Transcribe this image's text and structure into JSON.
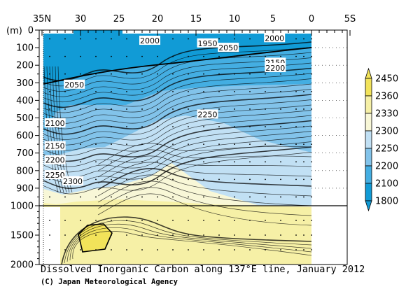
{
  "chart_data": {
    "type": "heatmap",
    "x_axis": {
      "tick_labels": [
        "35N",
        "30",
        "25",
        "20",
        "15",
        "10",
        "5",
        "0",
        "5S"
      ],
      "tick_values": [
        35,
        30,
        25,
        20,
        15,
        10,
        5,
        0,
        -5
      ],
      "range": [
        35,
        -5
      ],
      "unit": "°N"
    },
    "y_axis": {
      "unit_label": "(m)",
      "tick_labels": [
        "0",
        "100",
        "200",
        "300",
        "400",
        "500",
        "600",
        "700",
        "800",
        "900",
        "1000",
        "1500",
        "2000"
      ],
      "upper_segment_range": [
        0,
        1000
      ],
      "lower_segment_range": [
        1000,
        2000
      ],
      "inverted": true
    },
    "color_scale": {
      "levels": [
        "1800",
        "2100",
        "2200",
        "2250",
        "2300",
        "2330",
        "2360",
        "2450"
      ],
      "colors": [
        "#119bd6",
        "#44aee2",
        "#82c3ea",
        "#c1e0f4",
        "#f8f7d7",
        "#f6f0a6",
        "#f2e35a"
      ]
    },
    "contour_labels": [
      {
        "text": "2000",
        "lat": 21.0,
        "depth": 60
      },
      {
        "text": "1950",
        "lat": 13.5,
        "depth": 75
      },
      {
        "text": "2000",
        "lat": 4.8,
        "depth": 45
      },
      {
        "text": "2050",
        "lat": 10.8,
        "depth": 100
      },
      {
        "text": "2150",
        "lat": 4.7,
        "depth": 185
      },
      {
        "text": "2200",
        "lat": 4.7,
        "depth": 215
      },
      {
        "text": "2050",
        "lat": 30.8,
        "depth": 310
      },
      {
        "text": "2250",
        "lat": 13.5,
        "depth": 480
      },
      {
        "text": "2100",
        "lat": 33.3,
        "depth": 530
      },
      {
        "text": "2150",
        "lat": 33.3,
        "depth": 660
      },
      {
        "text": "2200",
        "lat": 33.3,
        "depth": 740
      },
      {
        "text": "2250",
        "lat": 33.3,
        "depth": 825
      },
      {
        "text": "2300",
        "lat": 31.0,
        "depth": 860
      }
    ],
    "title": "Dissolved Inorganic Carbon along 137°E line, January 2012",
    "credit": "(C) Japan Meteorological Agency"
  }
}
